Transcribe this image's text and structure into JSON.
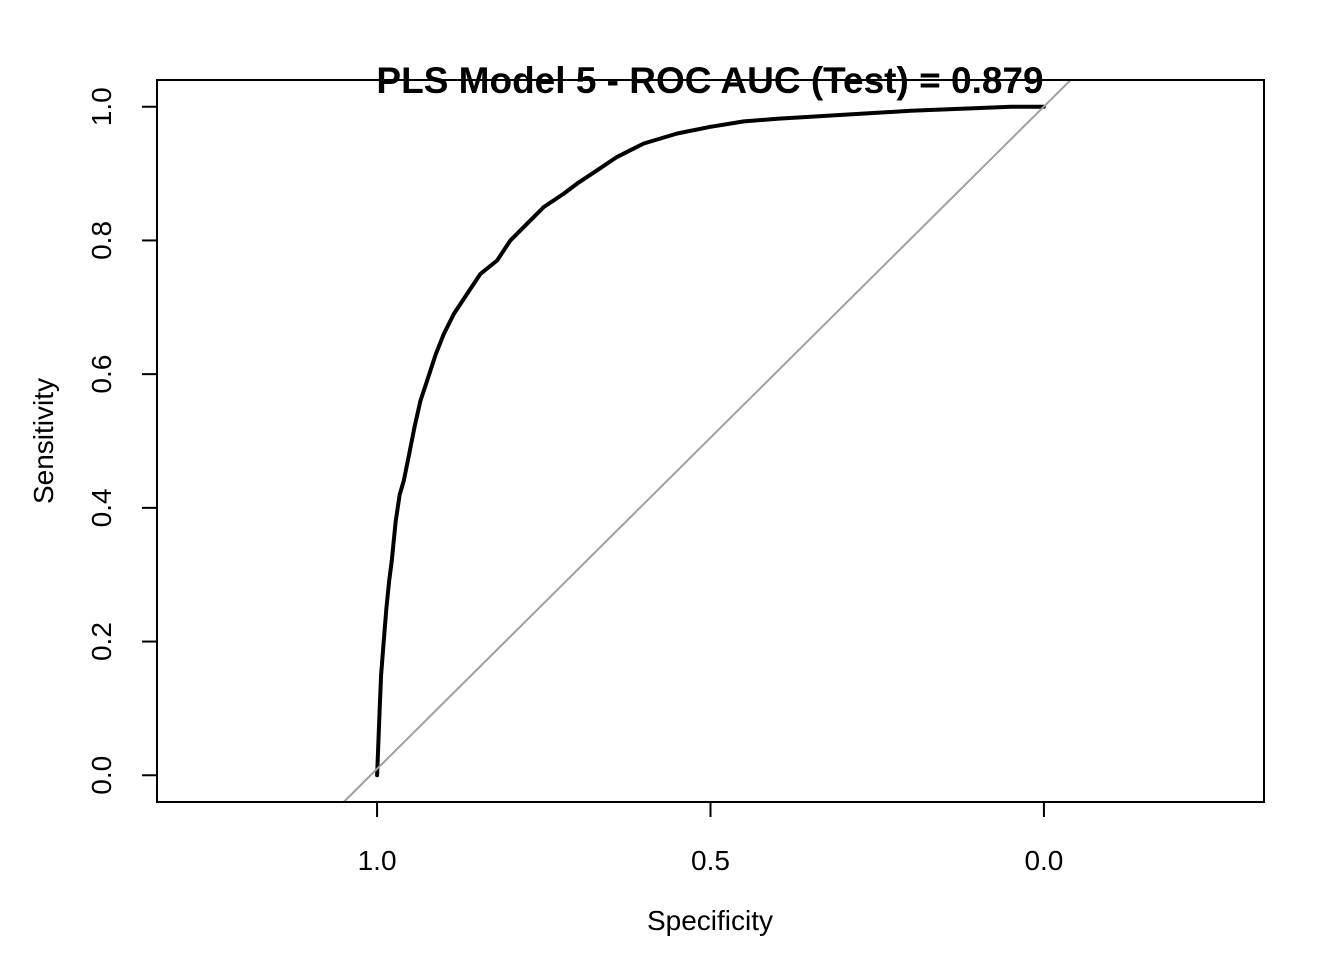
{
  "chart_data": {
    "type": "line",
    "title": "PLS Model 5 - ROC AUC (Test) = 0.879",
    "xlabel": "Specificity",
    "ylabel": "Sensitivity",
    "x_reversed": true,
    "xlim": [
      1.33,
      -0.33
    ],
    "ylim": [
      -0.04,
      1.04
    ],
    "x_ticks": [
      1.0,
      0.5,
      0.0
    ],
    "x_tick_labels": [
      "1.0",
      "0.5",
      "0.0"
    ],
    "y_ticks": [
      0.0,
      0.2,
      0.4,
      0.6,
      0.8,
      1.0
    ],
    "y_tick_labels": [
      "0.0",
      "0.2",
      "0.4",
      "0.6",
      "0.8",
      "1.0"
    ],
    "grid": false,
    "series": [
      {
        "color": "#000000",
        "points": [
          [
            1.0,
            0.0
          ],
          [
            0.998,
            0.05
          ],
          [
            0.996,
            0.1
          ],
          [
            0.994,
            0.15
          ],
          [
            0.99,
            0.2
          ],
          [
            0.986,
            0.25
          ],
          [
            0.982,
            0.29
          ],
          [
            0.978,
            0.32
          ],
          [
            0.972,
            0.38
          ],
          [
            0.966,
            0.42
          ],
          [
            0.96,
            0.44
          ],
          [
            0.952,
            0.48
          ],
          [
            0.944,
            0.52
          ],
          [
            0.935,
            0.56
          ],
          [
            0.925,
            0.59
          ],
          [
            0.912,
            0.63
          ],
          [
            0.9,
            0.66
          ],
          [
            0.885,
            0.69
          ],
          [
            0.865,
            0.72
          ],
          [
            0.845,
            0.75
          ],
          [
            0.82,
            0.77
          ],
          [
            0.8,
            0.8
          ],
          [
            0.775,
            0.825
          ],
          [
            0.75,
            0.85
          ],
          [
            0.72,
            0.87
          ],
          [
            0.7,
            0.885
          ],
          [
            0.67,
            0.905
          ],
          [
            0.64,
            0.925
          ],
          [
            0.6,
            0.945
          ],
          [
            0.55,
            0.96
          ],
          [
            0.5,
            0.97
          ],
          [
            0.45,
            0.978
          ],
          [
            0.4,
            0.982
          ],
          [
            0.3,
            0.988
          ],
          [
            0.2,
            0.994
          ],
          [
            0.1,
            0.998
          ],
          [
            0.05,
            1.0
          ],
          [
            0.0,
            1.0
          ]
        ]
      },
      {
        "color": "#a0a0a0",
        "reference_line": true,
        "points": [
          [
            1.05,
            -0.04
          ],
          [
            -0.04,
            1.04
          ]
        ]
      }
    ]
  }
}
